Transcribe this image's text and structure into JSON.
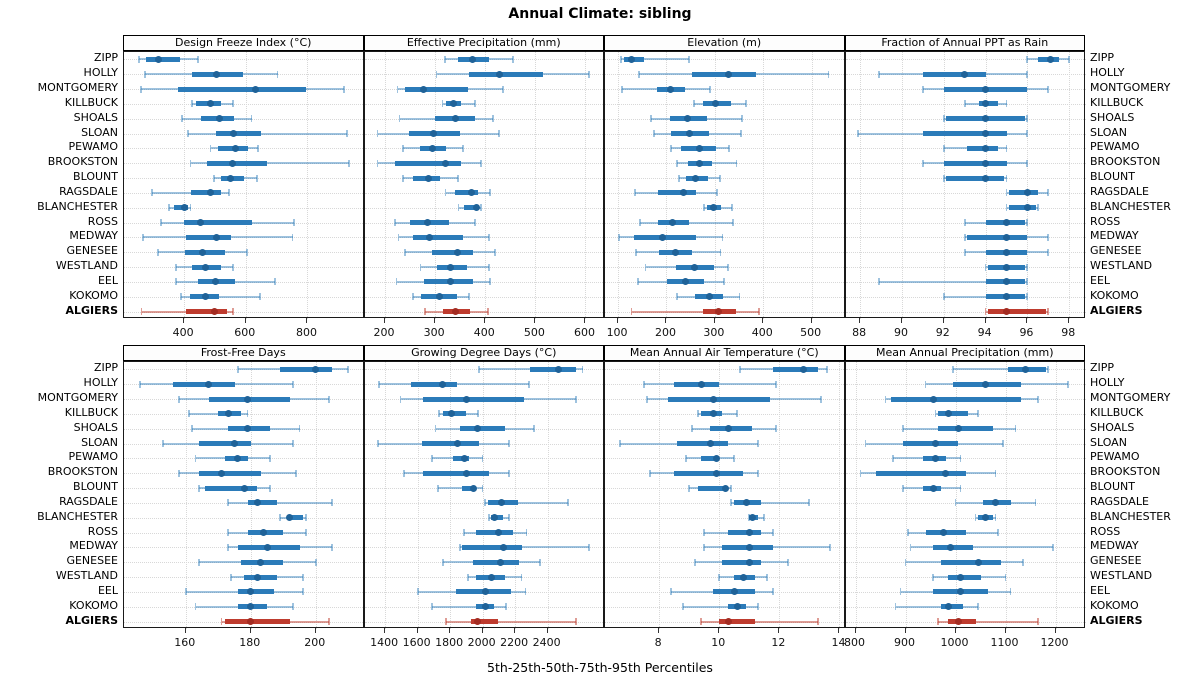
{
  "title": "Annual Climate: sibling",
  "footer": "5th-25th-50th-75th-95th Percentiles",
  "percentile_labels": [
    "5th",
    "25th",
    "50th",
    "75th",
    "95th"
  ],
  "highlight_row": "ALGIERS",
  "colors": {
    "series_box": "#2B7BB9",
    "series_whisker": "rgba(43,123,185,0.45)",
    "series_dot": "#1F6298",
    "highlight_box": "#BE3B2E",
    "highlight_whisker": "rgba(190,59,46,0.5)",
    "highlight_dot": "#A32C22",
    "grid": "#d8d8d8",
    "panel_border": "#1a1a1a"
  },
  "chart_data": {
    "type": "interval",
    "note": "5th-25th-50th-75th-95th percentile interval plot; dot = median, thick bar = 25th-75th, thin whisker = 5th-95th",
    "categories": [
      "ZIPP",
      "HOLLY",
      "MONTGOMERY",
      "KILLBUCK",
      "SHOALS",
      "SLOAN",
      "PEWAMO",
      "BROOKSTON",
      "BLOUNT",
      "RAGSDALE",
      "BLANCHESTER",
      "ROSS",
      "MEDWAY",
      "GENESEE",
      "WESTLAND",
      "EEL",
      "KOKOMO",
      "ALGIERS"
    ],
    "panels": [
      {
        "title": "Design Freeze Index (°C)",
        "band": 0,
        "col": 0,
        "xlim": [
          205,
          985
        ],
        "ticks": [
          400,
          600,
          800
        ],
        "values": [
          [
            254,
            275,
            316,
            386,
            445
          ],
          [
            273,
            424,
            506,
            590,
            703
          ],
          [
            260,
            381,
            630,
            794,
            918
          ],
          [
            426,
            437,
            486,
            520,
            558
          ],
          [
            394,
            456,
            515,
            561,
            619
          ],
          [
            413,
            504,
            560,
            649,
            929
          ],
          [
            486,
            510,
            566,
            606,
            639
          ],
          [
            421,
            475,
            558,
            669,
            934
          ],
          [
            497,
            520,
            550,
            593,
            636
          ],
          [
            295,
            421,
            485,
            518,
            547
          ],
          [
            350,
            368,
            402,
            413,
            421
          ],
          [
            325,
            400,
            453,
            619,
            757
          ],
          [
            268,
            407,
            504,
            553,
            752
          ],
          [
            316,
            402,
            461,
            533,
            604
          ],
          [
            375,
            426,
            469,
            520,
            558
          ],
          [
            375,
            445,
            501,
            565,
            695
          ],
          [
            391,
            418,
            469,
            512,
            647
          ],
          [
            262,
            407,
            499,
            540,
            558
          ]
        ]
      },
      {
        "title": "Effective Precipitation (mm)",
        "band": 0,
        "col": 1,
        "xlim": [
          159,
          639
        ],
        "ticks": [
          200,
          300,
          400,
          500,
          600
        ],
        "values": [
          [
            320,
            345,
            375,
            407,
            456
          ],
          [
            303,
            367,
            429,
            516,
            607
          ],
          [
            225,
            240,
            276,
            365,
            435
          ],
          [
            315,
            321,
            336,
            351,
            380
          ],
          [
            229,
            300,
            341,
            380,
            416
          ],
          [
            185,
            247,
            296,
            349,
            427
          ],
          [
            236,
            269,
            295,
            321,
            355
          ],
          [
            185,
            220,
            320,
            351,
            391
          ],
          [
            236,
            256,
            286,
            309,
            346
          ],
          [
            321,
            340,
            373,
            385,
            409
          ],
          [
            347,
            357,
            383,
            387,
            392
          ],
          [
            220,
            249,
            285,
            327,
            380
          ],
          [
            227,
            256,
            289,
            356,
            407
          ],
          [
            240,
            293,
            345,
            376,
            420
          ],
          [
            271,
            303,
            331,
            363,
            407
          ],
          [
            223,
            278,
            331,
            376,
            409
          ],
          [
            256,
            271,
            309,
            343,
            367
          ],
          [
            280,
            316,
            340,
            369,
            405
          ]
        ]
      },
      {
        "title": "Elevation (m)",
        "band": 0,
        "col": 2,
        "xlim": [
          73,
          570
        ],
        "ticks": [
          100,
          200,
          300,
          400,
          500
        ],
        "values": [
          [
            107,
            112,
            128,
            153,
            247
          ],
          [
            144,
            252,
            328,
            385,
            535
          ],
          [
            109,
            181,
            208,
            238,
            291
          ],
          [
            257,
            275,
            302,
            333,
            364
          ],
          [
            169,
            208,
            243,
            283,
            357
          ],
          [
            174,
            210,
            247,
            288,
            355
          ],
          [
            210,
            231,
            268,
            302,
            330
          ],
          [
            222,
            245,
            268,
            295,
            345
          ],
          [
            226,
            240,
            259,
            286,
            311
          ],
          [
            135,
            183,
            235,
            261,
            305
          ],
          [
            277,
            284,
            297,
            312,
            335
          ],
          [
            146,
            183,
            213,
            247,
            337
          ],
          [
            102,
            132,
            192,
            262,
            316
          ],
          [
            137,
            185,
            219,
            252,
            312
          ],
          [
            157,
            219,
            257,
            298,
            328
          ],
          [
            141,
            202,
            240,
            277,
            319
          ],
          [
            222,
            259,
            288,
            316,
            351
          ],
          [
            128,
            275,
            307,
            344,
            392
          ]
        ]
      },
      {
        "title": "Fraction of Annual PPT as Rain",
        "band": 0,
        "col": 3,
        "xlim": [
          87.3,
          98.8
        ],
        "ticks": [
          88,
          90,
          92,
          94,
          96,
          98
        ],
        "values": [
          [
            96.0,
            96.5,
            97.1,
            97.5,
            98.0
          ],
          [
            88.9,
            91.0,
            93.0,
            94.0,
            96.0
          ],
          [
            91.0,
            92.0,
            94.0,
            96.0,
            97.0
          ],
          [
            93.0,
            93.7,
            94.0,
            94.6,
            95.0
          ],
          [
            92.0,
            92.1,
            94.0,
            95.9,
            96.0
          ],
          [
            87.9,
            91.0,
            94.0,
            95.0,
            96.0
          ],
          [
            92.0,
            93.1,
            94.0,
            94.6,
            95.0
          ],
          [
            91.0,
            92.0,
            94.0,
            95.0,
            96.0
          ],
          [
            92.0,
            92.1,
            94.0,
            94.9,
            95.0
          ],
          [
            95.0,
            95.1,
            96.0,
            96.5,
            97.0
          ],
          [
            95.0,
            95.1,
            96.0,
            96.4,
            96.5
          ],
          [
            93.0,
            94.0,
            95.0,
            95.9,
            96.0
          ],
          [
            93.0,
            93.1,
            95.0,
            96.0,
            97.0
          ],
          [
            93.0,
            94.0,
            95.0,
            96.0,
            97.0
          ],
          [
            94.0,
            94.1,
            95.0,
            95.9,
            96.0
          ],
          [
            88.9,
            94.0,
            95.0,
            95.9,
            96.0
          ],
          [
            92.0,
            94.0,
            95.0,
            95.9,
            96.0
          ],
          [
            94.0,
            94.1,
            95.0,
            96.9,
            97.0
          ]
        ]
      },
      {
        "title": "Frost-Free Days",
        "band": 1,
        "col": 0,
        "xlim": [
          141,
          215
        ],
        "ticks": [
          160,
          180,
          200
        ],
        "values": [
          [
            176,
            189,
            200,
            205,
            210
          ],
          [
            146,
            156,
            167,
            175,
            193
          ],
          [
            158,
            167,
            179,
            192,
            204
          ],
          [
            161,
            170,
            173,
            177,
            179
          ],
          [
            162,
            173,
            179,
            186,
            195
          ],
          [
            153,
            164,
            175,
            180,
            193
          ],
          [
            163,
            172,
            176,
            179,
            186
          ],
          [
            158,
            164,
            171,
            183,
            194
          ],
          [
            164,
            166,
            178,
            182,
            186
          ],
          [
            173,
            179,
            182,
            188,
            205
          ],
          [
            189,
            191,
            192,
            196,
            197
          ],
          [
            173,
            179,
            184,
            190,
            197
          ],
          [
            173,
            176,
            185,
            195,
            205
          ],
          [
            164,
            177,
            183,
            190,
            200
          ],
          [
            174,
            178,
            182,
            188,
            196
          ],
          [
            160,
            176,
            180,
            187,
            196
          ],
          [
            163,
            176,
            180,
            185,
            193
          ],
          [
            171,
            172,
            180,
            192,
            204
          ]
        ]
      },
      {
        "title": "Growing Degree Days (°C)",
        "band": 1,
        "col": 1,
        "xlim": [
          1273,
          2753
        ],
        "ticks": [
          1400,
          1600,
          1800,
          2000,
          2200,
          2400
        ],
        "values": [
          [
            1980,
            2290,
            2465,
            2575,
            2615
          ],
          [
            1365,
            1560,
            1755,
            1840,
            2285
          ],
          [
            1495,
            1630,
            1900,
            2255,
            2575
          ],
          [
            1730,
            1755,
            1810,
            1900,
            1970
          ],
          [
            1710,
            1860,
            1970,
            2135,
            2315
          ],
          [
            1355,
            1625,
            1845,
            1980,
            2165
          ],
          [
            1690,
            1820,
            1890,
            1915,
            2000
          ],
          [
            1515,
            1630,
            1900,
            2040,
            2165
          ],
          [
            1725,
            1875,
            1945,
            1960,
            2000
          ],
          [
            2015,
            2030,
            2115,
            2220,
            2525
          ],
          [
            2040,
            2050,
            2075,
            2125,
            2165
          ],
          [
            1885,
            1960,
            2100,
            2185,
            2270
          ],
          [
            1860,
            1870,
            2130,
            2245,
            2655
          ],
          [
            1755,
            1940,
            2110,
            2225,
            2355
          ],
          [
            1910,
            1960,
            2055,
            2135,
            2240
          ],
          [
            1605,
            1835,
            2020,
            2175,
            2265
          ],
          [
            1690,
            1960,
            2020,
            2070,
            2145
          ],
          [
            1775,
            1930,
            1970,
            2095,
            2575
          ]
        ]
      },
      {
        "title": "Mean Annual Air Temperature (°C)",
        "band": 1,
        "col": 2,
        "xlim": [
          6.2,
          14.2
        ],
        "ticks": [
          8,
          10,
          12,
          14
        ],
        "values": [
          [
            10.7,
            11.8,
            12.8,
            13.3,
            13.6
          ],
          [
            7.5,
            8.5,
            9.4,
            10.0,
            11.9
          ],
          [
            7.6,
            8.3,
            9.8,
            11.7,
            13.4
          ],
          [
            9.3,
            9.4,
            9.8,
            10.1,
            10.6
          ],
          [
            9.1,
            9.7,
            10.3,
            11.1,
            11.9
          ],
          [
            6.7,
            8.6,
            9.7,
            10.3,
            11.3
          ],
          [
            8.9,
            9.4,
            9.9,
            10.0,
            10.5
          ],
          [
            7.7,
            8.5,
            9.9,
            10.8,
            11.3
          ],
          [
            9.0,
            9.3,
            10.2,
            10.3,
            10.4
          ],
          [
            10.4,
            10.5,
            10.9,
            11.4,
            13.0
          ],
          [
            11.0,
            11.0,
            11.1,
            11.3,
            11.5
          ],
          [
            9.5,
            10.3,
            11.0,
            11.4,
            11.8
          ],
          [
            9.5,
            10.1,
            11.0,
            11.8,
            13.7
          ],
          [
            9.2,
            10.1,
            11.0,
            11.4,
            12.3
          ],
          [
            10.0,
            10.5,
            10.8,
            11.2,
            11.6
          ],
          [
            8.4,
            9.8,
            10.5,
            11.2,
            11.8
          ],
          [
            8.8,
            10.3,
            10.6,
            10.9,
            11.3
          ],
          [
            9.4,
            10.0,
            10.3,
            11.2,
            13.3
          ]
        ]
      },
      {
        "title": "Mean Annual Precipitation (mm)",
        "band": 1,
        "col": 3,
        "xlim": [
          780,
          1261
        ],
        "ticks": [
          800,
          900,
          1000,
          1100,
          1200
        ],
        "values": [
          [
            995,
            1105,
            1140,
            1180,
            1185
          ],
          [
            940,
            995,
            1060,
            1130,
            1225
          ],
          [
            860,
            870,
            955,
            1130,
            1165
          ],
          [
            960,
            965,
            985,
            1025,
            1045
          ],
          [
            895,
            965,
            1005,
            1075,
            1120
          ],
          [
            820,
            895,
            960,
            1005,
            1095
          ],
          [
            875,
            935,
            960,
            980,
            1010
          ],
          [
            810,
            840,
            980,
            1020,
            1080
          ],
          [
            895,
            935,
            955,
            970,
            1010
          ],
          [
            1000,
            1055,
            1080,
            1110,
            1160
          ],
          [
            1040,
            1045,
            1060,
            1075,
            1080
          ],
          [
            905,
            940,
            975,
            1020,
            1085
          ],
          [
            910,
            955,
            990,
            1035,
            1195
          ],
          [
            900,
            970,
            1045,
            1090,
            1135
          ],
          [
            955,
            985,
            1010,
            1050,
            1100
          ],
          [
            890,
            955,
            1010,
            1065,
            1110
          ],
          [
            880,
            970,
            985,
            1015,
            1045
          ],
          [
            965,
            985,
            1005,
            1040,
            1165
          ]
        ]
      }
    ]
  }
}
